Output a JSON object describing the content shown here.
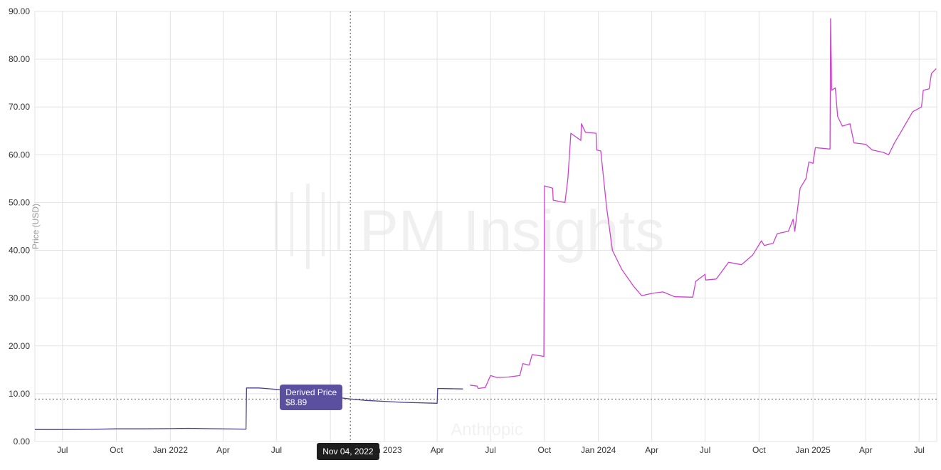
{
  "chart_data": {
    "type": "line",
    "ylabel": "Price (USD)",
    "ylim": [
      0,
      90
    ],
    "y_ticks": [
      "0.00",
      "10.00",
      "20.00",
      "30.00",
      "40.00",
      "50.00",
      "60.00",
      "70.00",
      "80.00",
      "90.00"
    ],
    "x_range": [
      "2021-05-15",
      "2025-07-31"
    ],
    "x_ticks": [
      {
        "date": "2021-07-01",
        "label": "Jul"
      },
      {
        "date": "2021-10-01",
        "label": "Oct"
      },
      {
        "date": "2022-01-01",
        "label": "Jan 2022"
      },
      {
        "date": "2022-04-01",
        "label": "Apr"
      },
      {
        "date": "2022-07-01",
        "label": "Jul"
      },
      {
        "date": "2022-10-01",
        "label": "Oct"
      },
      {
        "date": "2023-01-01",
        "label": "Jan 2023"
      },
      {
        "date": "2023-04-01",
        "label": "Apr"
      },
      {
        "date": "2023-07-01",
        "label": "Jul"
      },
      {
        "date": "2023-10-01",
        "label": "Oct"
      },
      {
        "date": "2024-01-01",
        "label": "Jan 2024"
      },
      {
        "date": "2024-04-01",
        "label": "Apr"
      },
      {
        "date": "2024-07-01",
        "label": "Jul"
      },
      {
        "date": "2024-10-01",
        "label": "Oct"
      },
      {
        "date": "2025-01-01",
        "label": "Jan 2025"
      },
      {
        "date": "2025-04-01",
        "label": "Apr"
      },
      {
        "date": "2025-07-01",
        "label": "Jul"
      }
    ],
    "grid": true,
    "series": [
      {
        "name": "Derived Price",
        "color": "#4b3f8c",
        "points": [
          [
            "2021-05-15",
            2.5
          ],
          [
            "2021-07-01",
            2.5
          ],
          [
            "2021-08-15",
            2.55
          ],
          [
            "2021-10-01",
            2.65
          ],
          [
            "2021-11-15",
            2.65
          ],
          [
            "2022-01-01",
            2.7
          ],
          [
            "2022-02-01",
            2.75
          ],
          [
            "2022-03-01",
            2.7
          ],
          [
            "2022-05-10",
            2.6
          ],
          [
            "2022-05-11",
            11.2
          ],
          [
            "2022-06-01",
            11.2
          ],
          [
            "2022-07-01",
            10.9
          ],
          [
            "2022-08-01",
            10.4
          ],
          [
            "2022-09-01",
            9.9
          ],
          [
            "2022-10-01",
            9.4
          ],
          [
            "2022-11-04",
            8.89
          ],
          [
            "2022-12-01",
            8.6
          ],
          [
            "2023-01-01",
            8.4
          ],
          [
            "2023-02-01",
            8.2
          ],
          [
            "2023-03-01",
            8.1
          ],
          [
            "2023-04-01",
            8.0
          ],
          [
            "2023-04-02",
            11.1
          ],
          [
            "2023-05-15",
            11.0
          ]
        ]
      },
      {
        "name": "",
        "color": "#cc44cc",
        "points": [
          [
            "2023-05-27",
            11.8
          ],
          [
            "2023-06-08",
            11.6
          ],
          [
            "2023-06-10",
            11.1
          ],
          [
            "2023-06-22",
            11.3
          ],
          [
            "2023-07-01",
            13.8
          ],
          [
            "2023-07-12",
            13.4
          ],
          [
            "2023-08-01",
            13.5
          ],
          [
            "2023-08-20",
            13.8
          ],
          [
            "2023-08-25",
            16.3
          ],
          [
            "2023-09-05",
            16.0
          ],
          [
            "2023-09-10",
            18.2
          ],
          [
            "2023-09-30",
            17.8
          ],
          [
            "2023-10-01",
            53.5
          ],
          [
            "2023-10-15",
            53.0
          ],
          [
            "2023-10-16",
            50.5
          ],
          [
            "2023-11-05",
            50.0
          ],
          [
            "2023-11-10",
            55.0
          ],
          [
            "2023-11-15",
            64.5
          ],
          [
            "2023-12-02",
            63.0
          ],
          [
            "2023-12-03",
            66.5
          ],
          [
            "2023-12-10",
            64.7
          ],
          [
            "2023-12-28",
            64.5
          ],
          [
            "2023-12-29",
            61.0
          ],
          [
            "2024-01-05",
            60.8
          ],
          [
            "2024-01-15",
            49.0
          ],
          [
            "2024-01-25",
            40.0
          ],
          [
            "2024-02-10",
            36.0
          ],
          [
            "2024-03-01",
            32.5
          ],
          [
            "2024-03-15",
            30.5
          ],
          [
            "2024-04-01",
            31.0
          ],
          [
            "2024-04-20",
            31.3
          ],
          [
            "2024-05-10",
            30.3
          ],
          [
            "2024-06-10",
            30.2
          ],
          [
            "2024-06-15",
            33.5
          ],
          [
            "2024-07-01",
            35.0
          ],
          [
            "2024-07-02",
            33.8
          ],
          [
            "2024-07-20",
            34.0
          ],
          [
            "2024-08-10",
            37.5
          ],
          [
            "2024-09-01",
            37.0
          ],
          [
            "2024-09-20",
            39.0
          ],
          [
            "2024-10-05",
            42.0
          ],
          [
            "2024-10-10",
            41.0
          ],
          [
            "2024-10-25",
            41.5
          ],
          [
            "2024-11-01",
            43.5
          ],
          [
            "2024-11-20",
            44.0
          ],
          [
            "2024-11-28",
            46.5
          ],
          [
            "2024-12-01",
            44.0
          ],
          [
            "2024-12-05",
            48.0
          ],
          [
            "2024-12-10",
            53.0
          ],
          [
            "2024-12-20",
            55.0
          ],
          [
            "2024-12-25",
            58.5
          ],
          [
            "2025-01-01",
            58.2
          ],
          [
            "2025-01-05",
            61.5
          ],
          [
            "2025-01-30",
            61.2
          ],
          [
            "2025-01-31",
            88.5
          ],
          [
            "2025-02-02",
            73.5
          ],
          [
            "2025-02-08",
            74.0
          ],
          [
            "2025-02-12",
            68.0
          ],
          [
            "2025-02-20",
            66.0
          ],
          [
            "2025-03-05",
            66.5
          ],
          [
            "2025-03-12",
            62.5
          ],
          [
            "2025-04-01",
            62.2
          ],
          [
            "2025-04-12",
            61.0
          ],
          [
            "2025-05-01",
            60.5
          ],
          [
            "2025-05-10",
            60.0
          ],
          [
            "2025-05-20",
            62.5
          ],
          [
            "2025-06-01",
            65.0
          ],
          [
            "2025-06-20",
            69.0
          ],
          [
            "2025-07-05",
            70.0
          ],
          [
            "2025-07-08",
            73.5
          ],
          [
            "2025-07-18",
            73.8
          ],
          [
            "2025-07-22",
            77.0
          ],
          [
            "2025-07-30",
            78.0
          ]
        ]
      }
    ],
    "crosshair": {
      "date": "2022-11-04",
      "date_label": "Nov 04, 2022",
      "value": 8.89
    },
    "tooltip": {
      "series_label": "Derived Price",
      "value_label": "$8.89"
    },
    "watermark": {
      "brand": "PM Insights",
      "subject": "Anthropic"
    }
  }
}
